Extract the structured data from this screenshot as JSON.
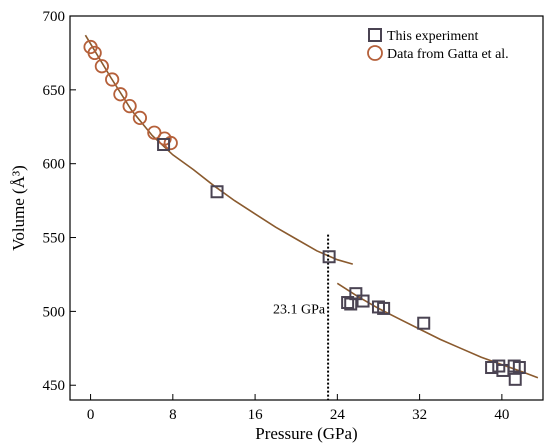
{
  "chart_data": {
    "type": "scatter",
    "xlabel": "Pressure (GPa)",
    "ylabel": "Volume (Å³)",
    "xlim": [
      -2,
      44
    ],
    "ylim": [
      440,
      700
    ],
    "xticks": [
      0,
      8,
      16,
      24,
      32,
      40
    ],
    "yticks": [
      450,
      500,
      550,
      600,
      650,
      700
    ],
    "grid": false,
    "legend_position": "top-right",
    "colors": {
      "experiment": "#4a4352",
      "gatta": "#b5603a",
      "fit": "#8a5a2e",
      "transition": "#000000"
    },
    "series": [
      {
        "name": "This experiment",
        "marker": "square",
        "points": [
          [
            7.1,
            613
          ],
          [
            12.3,
            581
          ],
          [
            23.2,
            537
          ],
          [
            25.0,
            506
          ],
          [
            25.3,
            505
          ],
          [
            25.8,
            512
          ],
          [
            26.5,
            507
          ],
          [
            28.0,
            503
          ],
          [
            28.5,
            502
          ],
          [
            32.4,
            492
          ],
          [
            39.0,
            462
          ],
          [
            39.7,
            463
          ],
          [
            40.1,
            460
          ],
          [
            41.2,
            463
          ],
          [
            41.3,
            454
          ],
          [
            41.7,
            462
          ]
        ]
      },
      {
        "name": "Data from Gatta et al.",
        "marker": "circle",
        "points": [
          [
            0.0,
            679
          ],
          [
            0.4,
            675
          ],
          [
            1.1,
            666
          ],
          [
            2.1,
            657
          ],
          [
            2.9,
            647
          ],
          [
            3.8,
            639
          ],
          [
            4.8,
            631
          ],
          [
            6.2,
            621
          ],
          [
            7.2,
            617
          ],
          [
            7.8,
            614
          ]
        ]
      },
      {
        "name": "fit-low",
        "type": "line",
        "points": [
          [
            -0.5,
            687
          ],
          [
            2,
            658
          ],
          [
            4,
            636
          ],
          [
            6,
            619
          ],
          [
            8,
            606
          ],
          [
            10,
            596
          ],
          [
            12,
            585
          ],
          [
            14,
            575
          ],
          [
            16,
            566
          ],
          [
            18,
            557
          ],
          [
            20,
            549
          ],
          [
            22,
            541
          ],
          [
            24,
            535
          ],
          [
            25.5,
            532
          ]
        ]
      },
      {
        "name": "fit-high",
        "type": "line",
        "points": [
          [
            24,
            519
          ],
          [
            26,
            510
          ],
          [
            28,
            502
          ],
          [
            30,
            495
          ],
          [
            32,
            488
          ],
          [
            34,
            481
          ],
          [
            36,
            475
          ],
          [
            38,
            469
          ],
          [
            40,
            464
          ],
          [
            42,
            459
          ],
          [
            43.5,
            455
          ]
        ]
      }
    ],
    "annotations": [
      {
        "text": "23.1 GPa",
        "x": 23.1
      }
    ]
  }
}
